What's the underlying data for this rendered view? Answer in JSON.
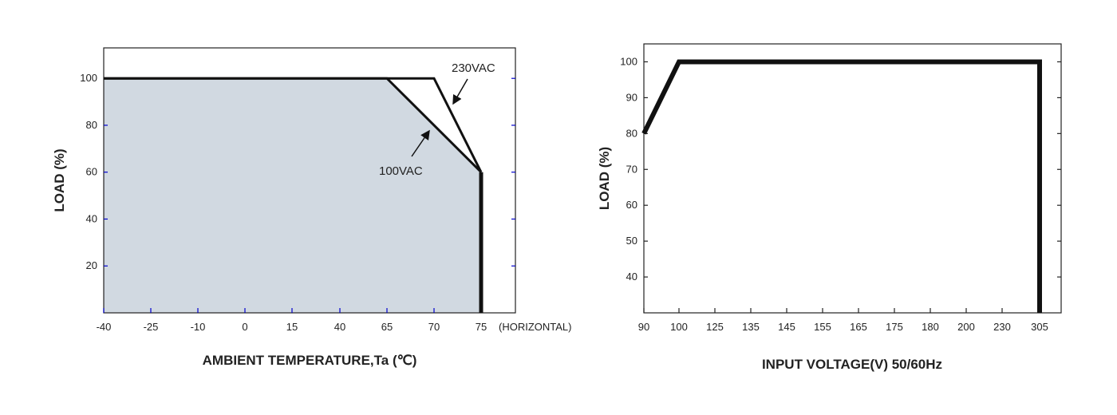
{
  "chart_data": [
    {
      "type": "line",
      "xlabel": "AMBIENT TEMPERATURE,Ta (℃)",
      "ylabel": "LOAD (%)",
      "x_ticks": [
        "-40",
        "-25",
        "-10",
        "0",
        "15",
        "40",
        "65",
        "70",
        "75"
      ],
      "x_axis_note": "(HORIZONTAL)",
      "y_ticks": [
        "20",
        "40",
        "60",
        "80",
        "100"
      ],
      "ylim": [
        0,
        113
      ],
      "grid": false,
      "shaded_region": true,
      "series": [
        {
          "name": "230VAC",
          "points": [
            [
              "-40",
              100
            ],
            [
              "70",
              100
            ],
            [
              "75",
              60
            ]
          ]
        },
        {
          "name": "100VAC",
          "points": [
            [
              "-40",
              100
            ],
            [
              "65",
              100
            ],
            [
              "75",
              60
            ]
          ]
        }
      ],
      "drop_line": {
        "x": "75",
        "from": 60,
        "to": 0
      },
      "annotations": [
        "230VAC",
        "100VAC"
      ],
      "colors": {
        "fill": "#d1d9e1",
        "line": "#111111",
        "tick_marks": "#0000cc"
      }
    },
    {
      "type": "line",
      "xlabel": "INPUT VOLTAGE(V) 50/60Hz",
      "ylabel": "LOAD (%)",
      "x_ticks": [
        "90",
        "100",
        "125",
        "135",
        "145",
        "155",
        "165",
        "175",
        "180",
        "200",
        "230",
        "305"
      ],
      "y_ticks": [
        "40",
        "50",
        "60",
        "70",
        "80",
        "90",
        "100"
      ],
      "ylim": [
        30,
        105
      ],
      "grid": false,
      "series": [
        {
          "points": [
            [
              "90",
              80
            ],
            [
              "100",
              100
            ],
            [
              "305",
              100
            ],
            [
              "305",
              30
            ]
          ]
        }
      ],
      "colors": {
        "line": "#111111"
      }
    }
  ]
}
